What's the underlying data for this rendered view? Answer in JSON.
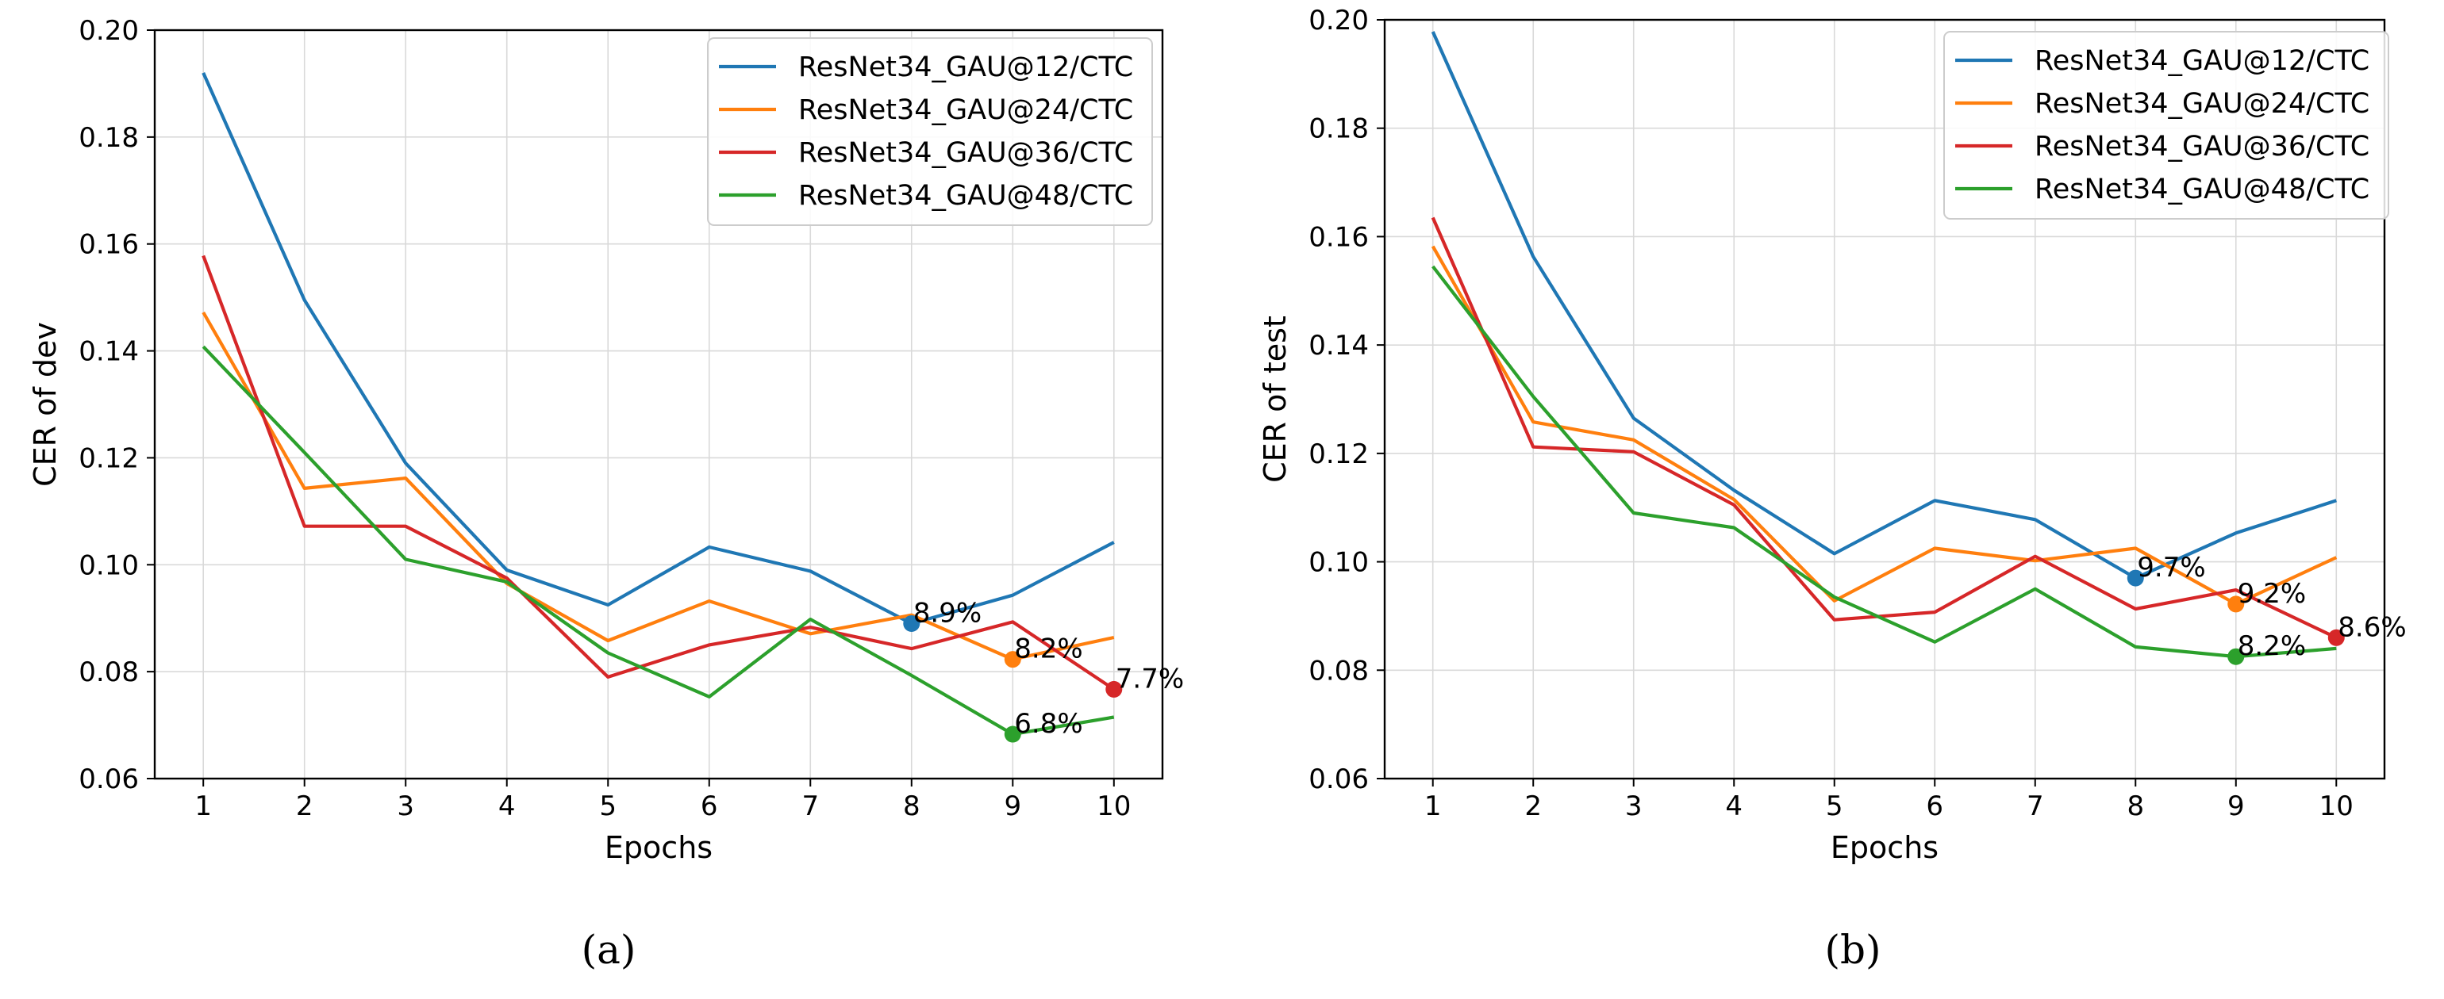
{
  "colors": {
    "blue": "#1f77b4",
    "orange": "#ff7f0e",
    "red": "#d62728",
    "green": "#2ca02c",
    "grid": "#d9d9d9"
  },
  "chart_data": [
    {
      "type": "line",
      "caption": "(a)",
      "xlabel": "Epochs",
      "ylabel": "CER of dev",
      "x": [
        1,
        2,
        3,
        4,
        5,
        6,
        7,
        8,
        9,
        10
      ],
      "xticks": [
        "1",
        "2",
        "3",
        "4",
        "5",
        "6",
        "7",
        "8",
        "9",
        "10"
      ],
      "ylim": [
        0.06,
        0.2
      ],
      "yticks": [
        "0.06",
        "0.08",
        "0.10",
        "0.12",
        "0.14",
        "0.16",
        "0.18",
        "0.20"
      ],
      "grid": true,
      "legend_position": "top-right",
      "series": [
        {
          "name": "ResNet34_GAU@12/CTC",
          "color": "#1f77b4",
          "values": [
            0.192,
            0.1495,
            0.119,
            0.099,
            0.0925,
            0.1033,
            0.0988,
            0.089,
            0.0943,
            0.1042
          ],
          "best": {
            "x": 8,
            "y": 0.089,
            "label": "8.9%"
          }
        },
        {
          "name": "ResNet34_GAU@24/CTC",
          "color": "#ff7f0e",
          "values": [
            0.1472,
            0.1143,
            0.1162,
            0.0965,
            0.0858,
            0.0932,
            0.0871,
            0.0906,
            0.0823,
            0.0864
          ],
          "best": {
            "x": 9,
            "y": 0.0823,
            "label": "8.2%"
          }
        },
        {
          "name": "ResNet34_GAU@36/CTC",
          "color": "#d62728",
          "values": [
            0.1578,
            0.1072,
            0.1072,
            0.0975,
            0.079,
            0.085,
            0.0883,
            0.0843,
            0.0893,
            0.0767
          ],
          "best": {
            "x": 10,
            "y": 0.0767,
            "label": "7.7%"
          }
        },
        {
          "name": "ResNet34_GAU@48/CTC",
          "color": "#2ca02c",
          "values": [
            0.1408,
            0.121,
            0.101,
            0.0968,
            0.0835,
            0.0753,
            0.0898,
            0.0793,
            0.0683,
            0.0715
          ],
          "best": {
            "x": 9,
            "y": 0.0683,
            "label": "6.8%"
          }
        }
      ]
    },
    {
      "type": "line",
      "caption": "(b)",
      "xlabel": "Epochs",
      "ylabel": "CER of test",
      "x": [
        1,
        2,
        3,
        4,
        5,
        6,
        7,
        8,
        9,
        10
      ],
      "xticks": [
        "1",
        "2",
        "3",
        "4",
        "5",
        "6",
        "7",
        "8",
        "9",
        "10"
      ],
      "ylim": [
        0.06,
        0.2
      ],
      "yticks": [
        "0.06",
        "0.08",
        "0.10",
        "0.12",
        "0.14",
        "0.16",
        "0.18",
        "0.20"
      ],
      "grid": true,
      "legend_position": "top-right",
      "series": [
        {
          "name": "ResNet34_GAU@12/CTC",
          "color": "#1f77b4",
          "values": [
            0.1978,
            0.1563,
            0.1265,
            0.1132,
            0.1015,
            0.1113,
            0.1078,
            0.097,
            0.1053,
            0.1113
          ],
          "best": {
            "x": 8,
            "y": 0.097,
            "label": "9.7%"
          }
        },
        {
          "name": "ResNet34_GAU@24/CTC",
          "color": "#ff7f0e",
          "values": [
            0.1582,
            0.1258,
            0.1225,
            0.1115,
            0.0928,
            0.1025,
            0.1002,
            0.1025,
            0.0922,
            0.1008
          ],
          "best": {
            "x": 9,
            "y": 0.0922,
            "label": "9.2%"
          }
        },
        {
          "name": "ResNet34_GAU@36/CTC",
          "color": "#d62728",
          "values": [
            0.1635,
            0.1212,
            0.1203,
            0.1105,
            0.0893,
            0.0907,
            0.101,
            0.0913,
            0.0948,
            0.086
          ],
          "best": {
            "x": 10,
            "y": 0.086,
            "label": "8.6%"
          }
        },
        {
          "name": "ResNet34_GAU@48/CTC",
          "color": "#2ca02c",
          "values": [
            0.1545,
            0.1305,
            0.109,
            0.1063,
            0.0935,
            0.0852,
            0.095,
            0.0843,
            0.0825,
            0.084
          ],
          "best": {
            "x": 9,
            "y": 0.0825,
            "label": "8.2%"
          }
        }
      ]
    }
  ]
}
